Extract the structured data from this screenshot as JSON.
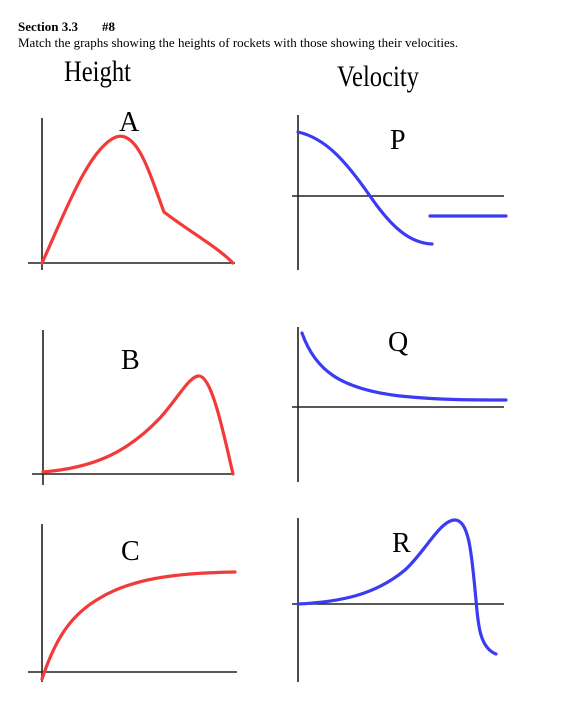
{
  "header": {
    "section": "Section 3.3",
    "problem": "#8",
    "instructions": "Match the graphs showing the heights of rockets with those showing their velocities."
  },
  "columns": {
    "height": "Height",
    "velocity": "Velocity"
  },
  "graphs": {
    "height": [
      {
        "label": "A"
      },
      {
        "label": "B"
      },
      {
        "label": "C"
      }
    ],
    "velocity": [
      {
        "label": "P"
      },
      {
        "label": "Q"
      },
      {
        "label": "R"
      }
    ]
  },
  "colors": {
    "height_curve": "#f23a3a",
    "velocity_curve": "#3b3bf2",
    "axes": "#222222"
  }
}
